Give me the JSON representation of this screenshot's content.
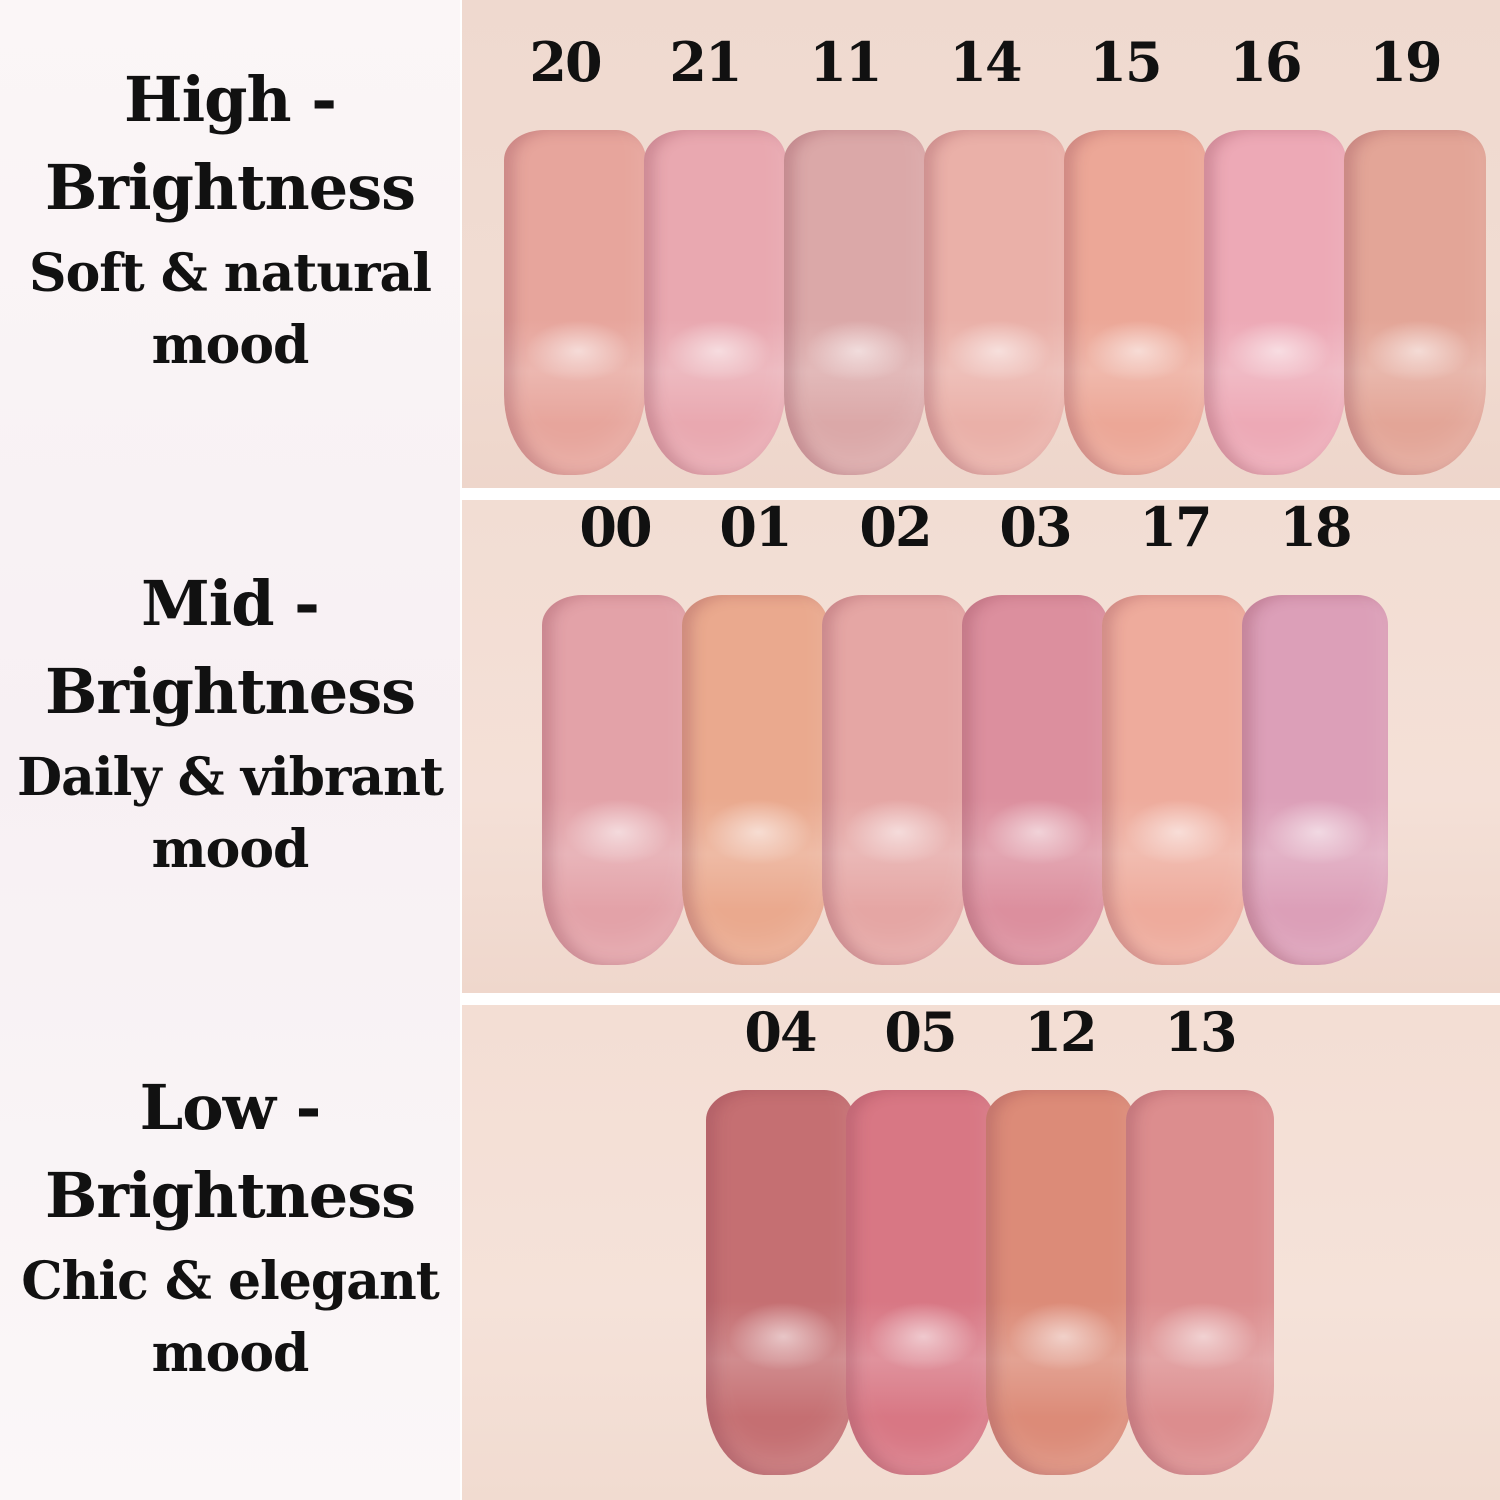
{
  "groups": [
    {
      "title_line1": "High -",
      "title_line2": "Brightness",
      "subtitle_line1": "Soft & natural",
      "subtitle_line2": "mood",
      "shades": [
        {
          "code": "20",
          "color": "#e7a59c"
        },
        {
          "code": "21",
          "color": "#e9a8b0"
        },
        {
          "code": "11",
          "color": "#dba8a8"
        },
        {
          "code": "14",
          "color": "#eab0a8"
        },
        {
          "code": "15",
          "color": "#eca797"
        },
        {
          "code": "16",
          "color": "#eda9b6"
        },
        {
          "code": "19",
          "color": "#e3a597"
        }
      ]
    },
    {
      "title_line1": "Mid -",
      "title_line2": "Brightness",
      "subtitle_line1": "Daily & vibrant",
      "subtitle_line2": "mood",
      "shades": [
        {
          "code": "00",
          "color": "#e3a2a8"
        },
        {
          "code": "01",
          "color": "#eaa98e"
        },
        {
          "code": "02",
          "color": "#e5a6a4"
        },
        {
          "code": "03",
          "color": "#dc8f9e"
        },
        {
          "code": "17",
          "color": "#eeab9c"
        },
        {
          "code": "18",
          "color": "#dc9fb8"
        }
      ]
    },
    {
      "title_line1": "Low -",
      "title_line2": "Brightness",
      "subtitle_line1": "Chic & elegant",
      "subtitle_line2": "mood",
      "shades": [
        {
          "code": "04",
          "color": "#c56f72"
        },
        {
          "code": "05",
          "color": "#d87784"
        },
        {
          "code": "12",
          "color": "#dc8b78"
        },
        {
          "code": "13",
          "color": "#dc8d8e"
        }
      ]
    }
  ]
}
